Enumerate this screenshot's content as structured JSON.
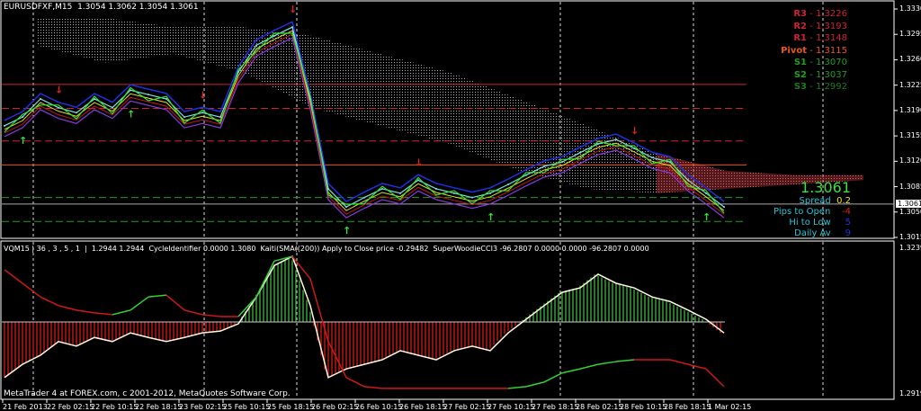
{
  "header": {
    "title": "EURUSDFXF,M15  1.3054 1.3062 1.3054 1.3061"
  },
  "indicator_header": {
    "text": "VQM15 | 36 , 3 , 5 , 1  |  1.2944 1.2944  CycleIdentifier 0.0000 1.3080  Kaiti(SMA((200)) Apply to Close price -0.29482  SuperWoodieCCI3 -96.2807 0.0000 0.0000 -96.2807 0.0000"
  },
  "footer": {
    "copyright": "MetaTrader 4 at FOREX.com, c 2001-2012, MetaQuotes Software Corp."
  },
  "pivots": [
    {
      "label": "R3",
      "value": "1.3226",
      "price": 1.3226,
      "color": "#d0203a",
      "style": "solid"
    },
    {
      "label": "R2",
      "value": "1.3193",
      "price": 1.3193,
      "color": "#d0203a",
      "style": "dashed"
    },
    {
      "label": "R1",
      "value": "1.3148",
      "price": 1.3148,
      "color": "#d0203a",
      "style": "dashed"
    },
    {
      "label": "Pivot",
      "value": "1.3115",
      "price": 1.3115,
      "color": "#e8561c",
      "style": "solid"
    },
    {
      "label": "S1",
      "value": "1.3070",
      "price": 1.307,
      "color": "#1f9e1f",
      "style": "dashed"
    },
    {
      "label": "S2",
      "value": "1.3037",
      "price": 1.3037,
      "color": "#1f9e1f",
      "style": "dashed"
    },
    {
      "label": "S3",
      "value": "1.2992",
      "price": 1.2992,
      "color": "#1f7a1f",
      "style": "dashed"
    }
  ],
  "info": {
    "price": "1.3061",
    "spread_label": "Spread",
    "spread_value": "0.2",
    "pips_label": "Pips to Open",
    "pips_value": "-4",
    "hilo_label": "Hi to Low",
    "hilo_value": "5",
    "daily_label": "Daily Av",
    "daily_value": "9"
  },
  "chart_data": [
    {
      "type": "line",
      "title": "EURUSDFXF,M15",
      "ylim": [
        1.3015,
        1.333
      ],
      "y_ticks": [
        "1.3330",
        "1.3295",
        "1.3260",
        "1.3225",
        "1.3190",
        "1.3155",
        "1.3120",
        "1.3085",
        "1.3050",
        "1.3015"
      ],
      "current_price": "1.3061",
      "x_ticks": [
        "21 Feb 2013",
        "22 Feb 02:15",
        "22 Feb 10:15",
        "22 Feb 18:15",
        "23 Feb 02:15",
        "25 Feb 10:15",
        "25 Feb 18:15",
        "26 Feb 02:15",
        "26 Feb 10:15",
        "26 Feb 18:15",
        "27 Feb 02:15",
        "27 Feb 10:15",
        "27 Feb 18:15",
        "28 Feb 02:15",
        "28 Feb 10:15",
        "28 Feb 18:15",
        "1 Mar 02:15"
      ],
      "grid": false,
      "series": [
        {
          "values": [
            1.3169,
            1.3181,
            1.3206,
            1.3194,
            1.3187,
            1.3206,
            1.3194,
            1.3218,
            1.3212,
            1.3206,
            1.3181,
            1.3187,
            1.3181,
            1.3243,
            1.328,
            1.3293,
            1.3305,
            1.3206,
            1.3082,
            1.3057,
            1.307,
            1.3082,
            1.3076,
            1.3094,
            1.3082,
            1.3076,
            1.307,
            1.3076,
            1.3088,
            1.3101,
            1.3113,
            1.3119,
            1.3132,
            1.3144,
            1.315,
            1.3138,
            1.3125,
            1.3119,
            1.3094,
            1.3076,
            1.3057
          ],
          "color": "#7fe0e0"
        }
      ],
      "cloud": {
        "upper": [
          1.3318,
          1.3318,
          1.3305,
          1.3305,
          1.3293,
          1.3268,
          1.3243,
          1.3206,
          1.3169,
          1.3131,
          1.3107,
          1.3101,
          1.3101
        ],
        "lower": [
          1.328,
          1.3256,
          1.3268,
          1.3243,
          1.3194,
          1.3169,
          1.3144,
          1.3107,
          1.3082,
          1.3076,
          1.3082,
          1.3088,
          1.3094
        ]
      },
      "signals": [
        {
          "index": 1,
          "type": "up"
        },
        {
          "index": 3,
          "type": "down"
        },
        {
          "index": 7,
          "type": "up"
        },
        {
          "index": 11,
          "type": "down"
        },
        {
          "index": 16,
          "type": "down"
        },
        {
          "index": 19,
          "type": "up"
        },
        {
          "index": 23,
          "type": "down"
        },
        {
          "index": 27,
          "type": "up"
        },
        {
          "index": 35,
          "type": "down"
        },
        {
          "index": 39,
          "type": "up"
        }
      ]
    },
    {
      "type": "bar",
      "title": "VQM15",
      "ylim": [
        1.2919,
        1.3239
      ],
      "y_ticks": [
        "1.3239",
        "1.2919"
      ],
      "zero": 1.3077,
      "series": [
        {
          "values": [
            1.2955,
            1.2984,
            1.3004,
            1.3034,
            1.3024,
            1.3043,
            1.3034,
            1.3053,
            1.3043,
            1.3034,
            1.3043,
            1.3053,
            1.3057,
            1.3073,
            1.3132,
            1.3201,
            1.3221,
            1.3113,
            1.2955,
            1.2974,
            1.2984,
            1.2994,
            1.3014,
            1.3004,
            1.2994,
            1.3014,
            1.3024,
            1.3014,
            1.3053,
            1.3083,
            1.3113,
            1.3142,
            1.3152,
            1.3182,
            1.3162,
            1.3152,
            1.3132,
            1.3122,
            1.3103,
            1.3083,
            1.3053
          ],
          "color": "#fff8e0"
        },
        {
          "values": [
            1.3192,
            1.3162,
            1.3132,
            1.3113,
            1.3103,
            1.3097,
            1.3093,
            1.3103,
            1.3132,
            1.3136,
            1.3103,
            1.3093,
            1.3089,
            1.3089,
            1.3132,
            1.3211,
            1.3221,
            1.3172,
            1.3034,
            1.2955,
            1.2935,
            1.2931,
            1.2931,
            1.2931,
            1.2931,
            1.2931,
            1.2931,
            1.2931,
            1.2931,
            1.2935,
            1.2945,
            1.2965,
            1.2974,
            1.2984,
            1.299,
            1.2994,
            1.2994,
            1.2994,
            1.2984,
            1.2974,
            1.2935
          ],
          "color": "#d01818"
        }
      ],
      "colors": {
        "positive": "#3aa83a",
        "negative": "#c81818"
      }
    }
  ]
}
